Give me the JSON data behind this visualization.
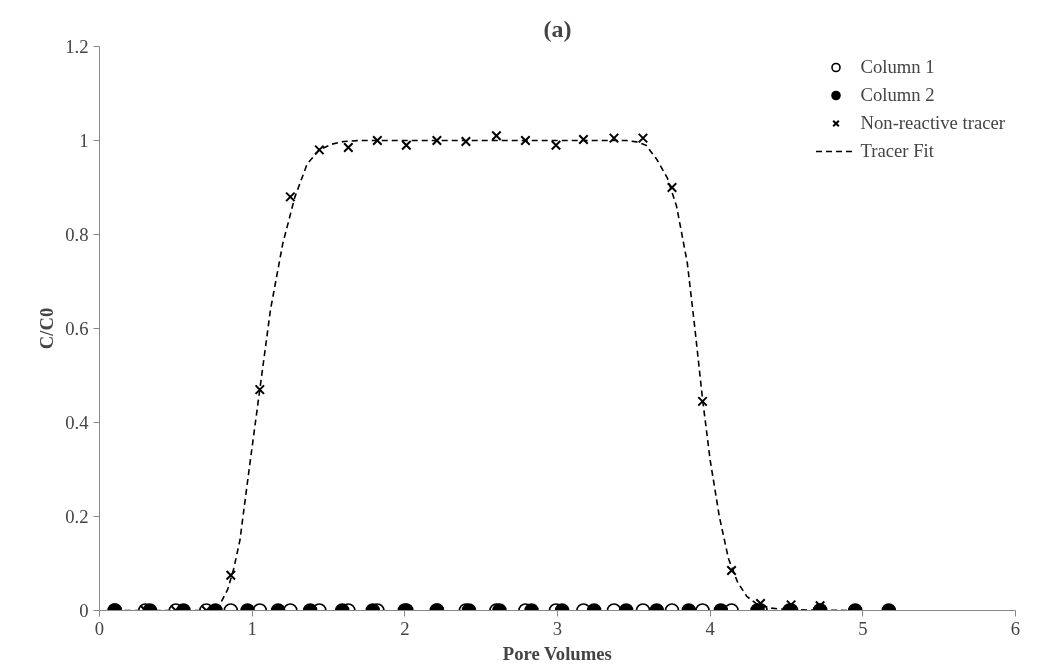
{
  "chart_data": {
    "type": "scatter",
    "title": "(a)",
    "xlabel": "Pore Volumes",
    "ylabel": "C/C0",
    "xlim": [
      0,
      6
    ],
    "ylim": [
      0,
      1.2
    ],
    "xticks": [
      0,
      1,
      2,
      3,
      4,
      5,
      6
    ],
    "yticks": [
      0,
      0.2,
      0.4,
      0.6,
      0.8,
      1,
      1.2
    ],
    "grid": false,
    "legend": "top right",
    "series": [
      {
        "name": "Column 1",
        "marker": "circle",
        "color": "#ffffff",
        "x": [
          0.1,
          0.3,
          0.5,
          0.7,
          0.86,
          1.05,
          1.25,
          1.44,
          1.63,
          1.82,
          2.01,
          2.21,
          2.4,
          2.6,
          2.79,
          2.99,
          3.17,
          3.37,
          3.56,
          3.75,
          3.95,
          4.14,
          4.33,
          4.53,
          4.72
        ],
        "values": [
          0,
          0,
          0,
          0,
          0,
          0,
          0,
          0,
          0,
          0,
          0,
          0,
          0,
          0,
          0,
          0,
          0,
          0,
          0,
          0,
          0,
          0,
          0,
          0,
          0
        ]
      },
      {
        "name": "Column 2",
        "marker": "circle",
        "color": "#000000",
        "x": [
          0.1,
          0.33,
          0.55,
          0.76,
          0.97,
          1.17,
          1.38,
          1.59,
          1.79,
          2.0,
          2.21,
          2.42,
          2.62,
          2.83,
          3.03,
          3.24,
          3.45,
          3.65,
          3.86,
          4.07,
          4.31,
          4.52,
          4.72,
          4.95,
          5.17
        ],
        "values": [
          0,
          0,
          0,
          0,
          0,
          0,
          0,
          0,
          0,
          0,
          0,
          0,
          0,
          0,
          0,
          0,
          0,
          0,
          0,
          0,
          0,
          0,
          0,
          0,
          0
        ]
      },
      {
        "name": "Non-reactive tracer",
        "marker": "cross",
        "color": "#000000",
        "x": [
          0.3,
          0.5,
          0.7,
          0.86,
          1.05,
          1.25,
          1.44,
          1.63,
          1.82,
          2.01,
          2.21,
          2.4,
          2.6,
          2.79,
          2.99,
          3.17,
          3.37,
          3.56,
          3.75,
          3.95,
          4.14,
          4.33,
          4.53,
          4.72
        ],
        "values": [
          0,
          0,
          0,
          0.075,
          0.47,
          0.88,
          0.98,
          0.985,
          1.0,
          0.99,
          1.0,
          0.998,
          1.01,
          1.0,
          0.99,
          1.002,
          1.005,
          1.005,
          0.9,
          0.445,
          0.085,
          0.015,
          0.012,
          0.01
        ]
      },
      {
        "name": "Tracer Fit",
        "type": "line",
        "line_style": "dashed",
        "marker": "none",
        "color": "#000000",
        "x": [
          0.1,
          0.7,
          0.76,
          0.8,
          0.84,
          0.88,
          0.92,
          0.98,
          1.05,
          1.12,
          1.2,
          1.28,
          1.36,
          1.44,
          1.52,
          1.6,
          1.7,
          3.45,
          3.52,
          3.58,
          3.65,
          3.72,
          3.78,
          3.85,
          3.9,
          3.95,
          4.0,
          4.06,
          4.12,
          4.18,
          4.24,
          4.3,
          4.4,
          4.5,
          4.65,
          4.9
        ],
        "values": [
          0,
          0,
          0.005,
          0.02,
          0.045,
          0.09,
          0.15,
          0.3,
          0.47,
          0.64,
          0.78,
          0.88,
          0.95,
          0.98,
          0.992,
          0.998,
          1.0,
          1.0,
          0.997,
          0.99,
          0.96,
          0.92,
          0.86,
          0.74,
          0.6,
          0.45,
          0.32,
          0.2,
          0.11,
          0.06,
          0.03,
          0.015,
          0.005,
          0.002,
          0.001,
          0
        ]
      }
    ]
  }
}
